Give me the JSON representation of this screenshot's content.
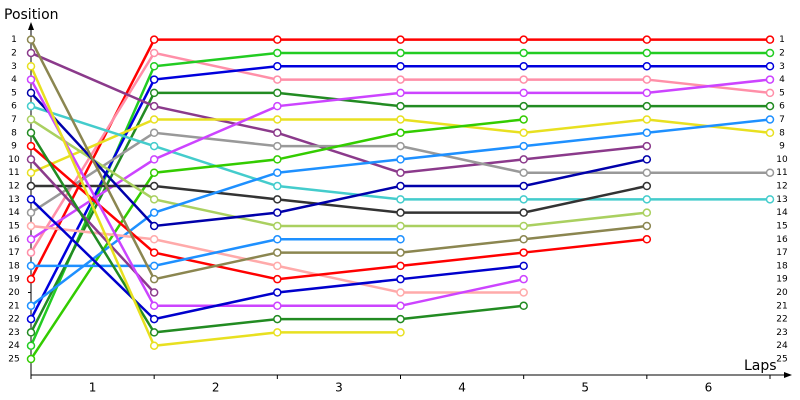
{
  "chart_data": {
    "type": "position-line",
    "y_label": "Position",
    "x_label": "Laps",
    "x": [
      0,
      1,
      2,
      3,
      4,
      5,
      6
    ],
    "xlim": [
      0,
      6
    ],
    "xticks": [
      {
        "value": 0.5,
        "label": "1"
      },
      {
        "value": 1.5,
        "label": "2"
      },
      {
        "value": 2.5,
        "label": "3"
      },
      {
        "value": 3.5,
        "label": "4"
      },
      {
        "value": 4.5,
        "label": "5"
      },
      {
        "value": 5.5,
        "label": "6"
      }
    ],
    "ylim": [
      26.2,
      -0.1
    ],
    "yticks": [
      1,
      2,
      3,
      4,
      5,
      6,
      7,
      8,
      9,
      10,
      11,
      12,
      13,
      14,
      15,
      16,
      17,
      18,
      19,
      20,
      21,
      22,
      23,
      24,
      25
    ],
    "series": [
      {
        "color": "#ff0000",
        "values": [
          19,
          1,
          1,
          1,
          1,
          1,
          1
        ]
      },
      {
        "color": "#ff8fa8",
        "values": [
          17,
          2,
          4,
          4,
          4,
          4,
          5
        ]
      },
      {
        "color": "#22cc22",
        "values": [
          24,
          3,
          2,
          2,
          2,
          2,
          2
        ]
      },
      {
        "color": "#0000dd",
        "values": [
          22,
          4,
          3,
          3,
          3,
          3,
          3
        ]
      },
      {
        "color": "#228b22",
        "values": [
          23,
          5,
          5,
          6,
          6,
          6,
          6
        ]
      },
      {
        "color": "#8b3a8b",
        "values": [
          2,
          6,
          8,
          11,
          10,
          9,
          null
        ]
      },
      {
        "color": "#e8e020",
        "values": [
          11,
          7,
          7,
          7,
          8,
          7,
          8
        ]
      },
      {
        "color": "#999999",
        "values": [
          14,
          8,
          9,
          9,
          11,
          11,
          11
        ]
      },
      {
        "color": "#44cccc",
        "values": [
          6,
          9,
          12,
          13,
          13,
          13,
          13
        ]
      },
      {
        "color": "#cc44ff",
        "values": [
          16,
          10,
          6,
          5,
          5,
          5,
          4
        ]
      },
      {
        "color": "#33cc00",
        "values": [
          25,
          11,
          10,
          8,
          7,
          null,
          null
        ]
      },
      {
        "color": "#333333",
        "values": [
          12,
          12,
          13,
          14,
          14,
          12,
          null
        ]
      },
      {
        "color": "#aad060",
        "values": [
          7,
          13,
          15,
          15,
          15,
          14,
          null
        ]
      },
      {
        "color": "#1e90ff",
        "values": [
          21,
          14,
          11,
          10,
          9,
          8,
          7
        ]
      },
      {
        "color": "#0000aa",
        "values": [
          5,
          15,
          14,
          12,
          12,
          10,
          null
        ]
      },
      {
        "color": "#ffaaaa",
        "values": [
          15,
          16,
          18,
          20,
          20,
          null,
          null
        ]
      },
      {
        "color": "#ff0000",
        "values": [
          9,
          17,
          19,
          18,
          17,
          16,
          null
        ]
      },
      {
        "color": "#1e90ff",
        "values": [
          18,
          18,
          16,
          16,
          null,
          null,
          null
        ]
      },
      {
        "color": "#8b8650",
        "values": [
          1,
          19,
          17,
          17,
          16,
          15,
          null
        ]
      },
      {
        "color": "#8b3a8b",
        "values": [
          10,
          20,
          null,
          null,
          null,
          null,
          null
        ]
      },
      {
        "color": "#cc44ff",
        "values": [
          4,
          21,
          21,
          21,
          19,
          null,
          null
        ]
      },
      {
        "color": "#0000cc",
        "values": [
          13,
          22,
          20,
          19,
          18,
          null,
          null
        ]
      },
      {
        "color": "#228b22",
        "values": [
          8,
          23,
          22,
          22,
          21,
          null,
          null
        ]
      },
      {
        "color": "#e8e020",
        "values": [
          3,
          24,
          23,
          23,
          null,
          null,
          null
        ]
      }
    ]
  }
}
